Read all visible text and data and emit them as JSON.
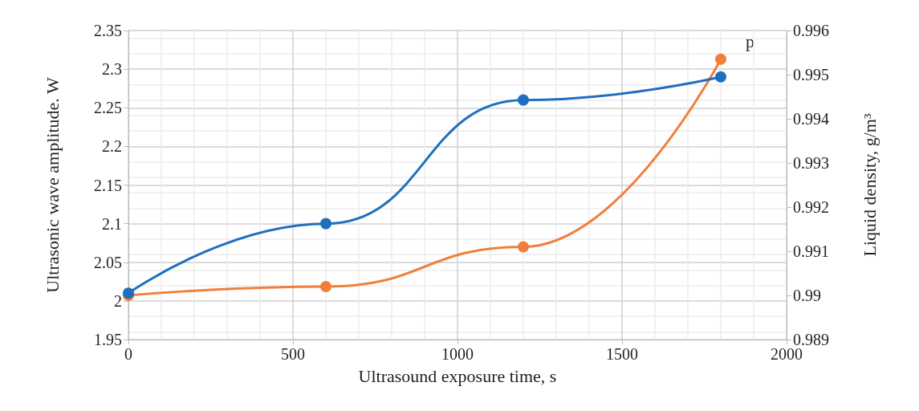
{
  "chart_data": {
    "type": "line",
    "xlabel": "Ultrasound exposure time, s",
    "ylabel": "Ultrasonic wave amplitude. W",
    "y2label": "Liquid density, g/m³",
    "x": [
      0,
      600,
      1200,
      1800
    ],
    "series": [
      {
        "color": "#1f6fbf",
        "values": [
          2.01,
          2.1,
          2.26,
          2.29
        ]
      },
      {
        "color": "#f07f3c",
        "values": [
          0.99,
          0.9902,
          0.9911,
          0.99535
        ],
        "axis": "y2"
      }
    ],
    "xlim": [
      0,
      2000
    ],
    "xticks": [
      0,
      500,
      1000,
      1500,
      2000
    ],
    "ylim": [
      1.95,
      2.35
    ],
    "yticks": [
      1.95,
      2,
      2.05,
      2.1,
      2.15,
      2.2,
      2.25,
      2.3,
      2.35
    ],
    "y2lim": [
      0.989,
      0.996
    ],
    "y2ticks": [
      0.989,
      0.99,
      0.991,
      0.992,
      0.993,
      0.994,
      0.995,
      0.996
    ],
    "annotations": [
      "p"
    ],
    "grid": true,
    "marker": "circle",
    "line_style": "solid"
  }
}
